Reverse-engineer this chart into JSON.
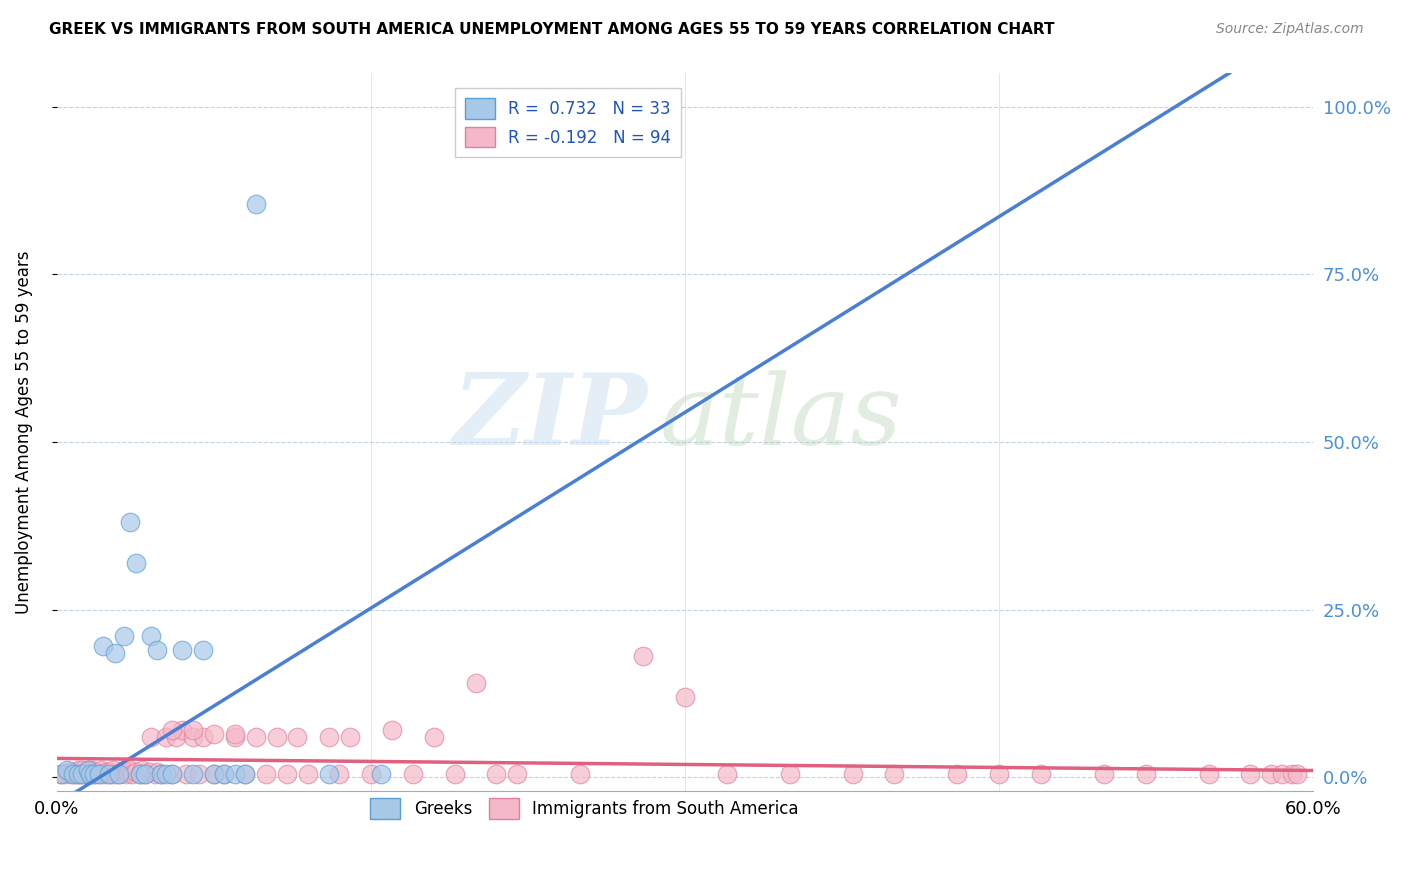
{
  "title": "GREEK VS IMMIGRANTS FROM SOUTH AMERICA UNEMPLOYMENT AMONG AGES 55 TO 59 YEARS CORRELATION CHART",
  "source": "Source: ZipAtlas.com",
  "ylabel": "Unemployment Among Ages 55 to 59 years",
  "right_yticks": [
    "100.0%",
    "75.0%",
    "50.0%",
    "25.0%",
    "0.0%"
  ],
  "right_ytick_vals": [
    1.0,
    0.75,
    0.5,
    0.25,
    0.0
  ],
  "watermark_zip": "ZIP",
  "watermark_atlas": "atlas",
  "greek_color": "#a8c8e8",
  "greek_edge_color": "#5a9fd4",
  "greek_line_color": "#4a7fd4",
  "south_america_color": "#f4b8c8",
  "south_america_edge_color": "#e080a0",
  "south_america_line_color": "#e06080",
  "xmin": 0.0,
  "xmax": 0.6,
  "ymin": -0.02,
  "ymax": 1.05,
  "legend_label_1": "R =  0.732   N = 33",
  "legend_label_2": "R = -0.192   N = 94",
  "bottom_legend_1": "Greeks",
  "bottom_legend_2": "Immigrants from South America",
  "greek_x": [
    0.002,
    0.005,
    0.008,
    0.01,
    0.012,
    0.015,
    0.016,
    0.018,
    0.02,
    0.022,
    0.025,
    0.028,
    0.03,
    0.032,
    0.035,
    0.038,
    0.04,
    0.042,
    0.045,
    0.048,
    0.05,
    0.052,
    0.055,
    0.06,
    0.065,
    0.07,
    0.075,
    0.08,
    0.085,
    0.09,
    0.095,
    0.13,
    0.155
  ],
  "greek_y": [
    0.005,
    0.01,
    0.005,
    0.005,
    0.005,
    0.01,
    0.005,
    0.005,
    0.005,
    0.195,
    0.005,
    0.185,
    0.005,
    0.21,
    0.38,
    0.32,
    0.005,
    0.005,
    0.21,
    0.19,
    0.005,
    0.005,
    0.005,
    0.19,
    0.005,
    0.19,
    0.005,
    0.005,
    0.005,
    0.005,
    0.855,
    0.005,
    0.005
  ],
  "sa_x": [
    0.002,
    0.004,
    0.006,
    0.007,
    0.008,
    0.009,
    0.01,
    0.01,
    0.011,
    0.012,
    0.013,
    0.014,
    0.015,
    0.015,
    0.016,
    0.017,
    0.018,
    0.019,
    0.02,
    0.021,
    0.022,
    0.023,
    0.024,
    0.025,
    0.026,
    0.027,
    0.028,
    0.03,
    0.031,
    0.032,
    0.033,
    0.034,
    0.035,
    0.036,
    0.038,
    0.04,
    0.041,
    0.042,
    0.044,
    0.045,
    0.047,
    0.048,
    0.05,
    0.052,
    0.055,
    0.057,
    0.06,
    0.062,
    0.065,
    0.068,
    0.07,
    0.075,
    0.08,
    0.085,
    0.09,
    0.095,
    0.1,
    0.105,
    0.11,
    0.115,
    0.12,
    0.13,
    0.135,
    0.14,
    0.15,
    0.16,
    0.17,
    0.18,
    0.19,
    0.2,
    0.21,
    0.22,
    0.25,
    0.28,
    0.3,
    0.32,
    0.35,
    0.38,
    0.4,
    0.43,
    0.45,
    0.47,
    0.5,
    0.52,
    0.55,
    0.57,
    0.58,
    0.585,
    0.59,
    0.592,
    0.055,
    0.065,
    0.075,
    0.085
  ],
  "sa_y": [
    0.005,
    0.005,
    0.008,
    0.005,
    0.008,
    0.005,
    0.005,
    0.01,
    0.005,
    0.01,
    0.005,
    0.008,
    0.005,
    0.01,
    0.005,
    0.01,
    0.005,
    0.008,
    0.005,
    0.01,
    0.005,
    0.008,
    0.005,
    0.008,
    0.005,
    0.01,
    0.005,
    0.005,
    0.008,
    0.01,
    0.005,
    0.008,
    0.01,
    0.005,
    0.008,
    0.005,
    0.01,
    0.005,
    0.008,
    0.06,
    0.005,
    0.008,
    0.005,
    0.06,
    0.005,
    0.06,
    0.07,
    0.005,
    0.06,
    0.005,
    0.06,
    0.005,
    0.005,
    0.06,
    0.005,
    0.06,
    0.005,
    0.06,
    0.005,
    0.06,
    0.005,
    0.06,
    0.005,
    0.06,
    0.005,
    0.07,
    0.005,
    0.06,
    0.005,
    0.14,
    0.005,
    0.005,
    0.005,
    0.18,
    0.12,
    0.005,
    0.005,
    0.005,
    0.005,
    0.005,
    0.005,
    0.005,
    0.005,
    0.005,
    0.005,
    0.005,
    0.005,
    0.005,
    0.005,
    0.005,
    0.07,
    0.07,
    0.065,
    0.065
  ],
  "greek_line_x": [
    0.0,
    0.56
  ],
  "greek_line_y": [
    -0.04,
    1.05
  ],
  "sa_line_x": [
    0.0,
    0.6
  ],
  "sa_line_y": [
    0.028,
    0.01
  ]
}
